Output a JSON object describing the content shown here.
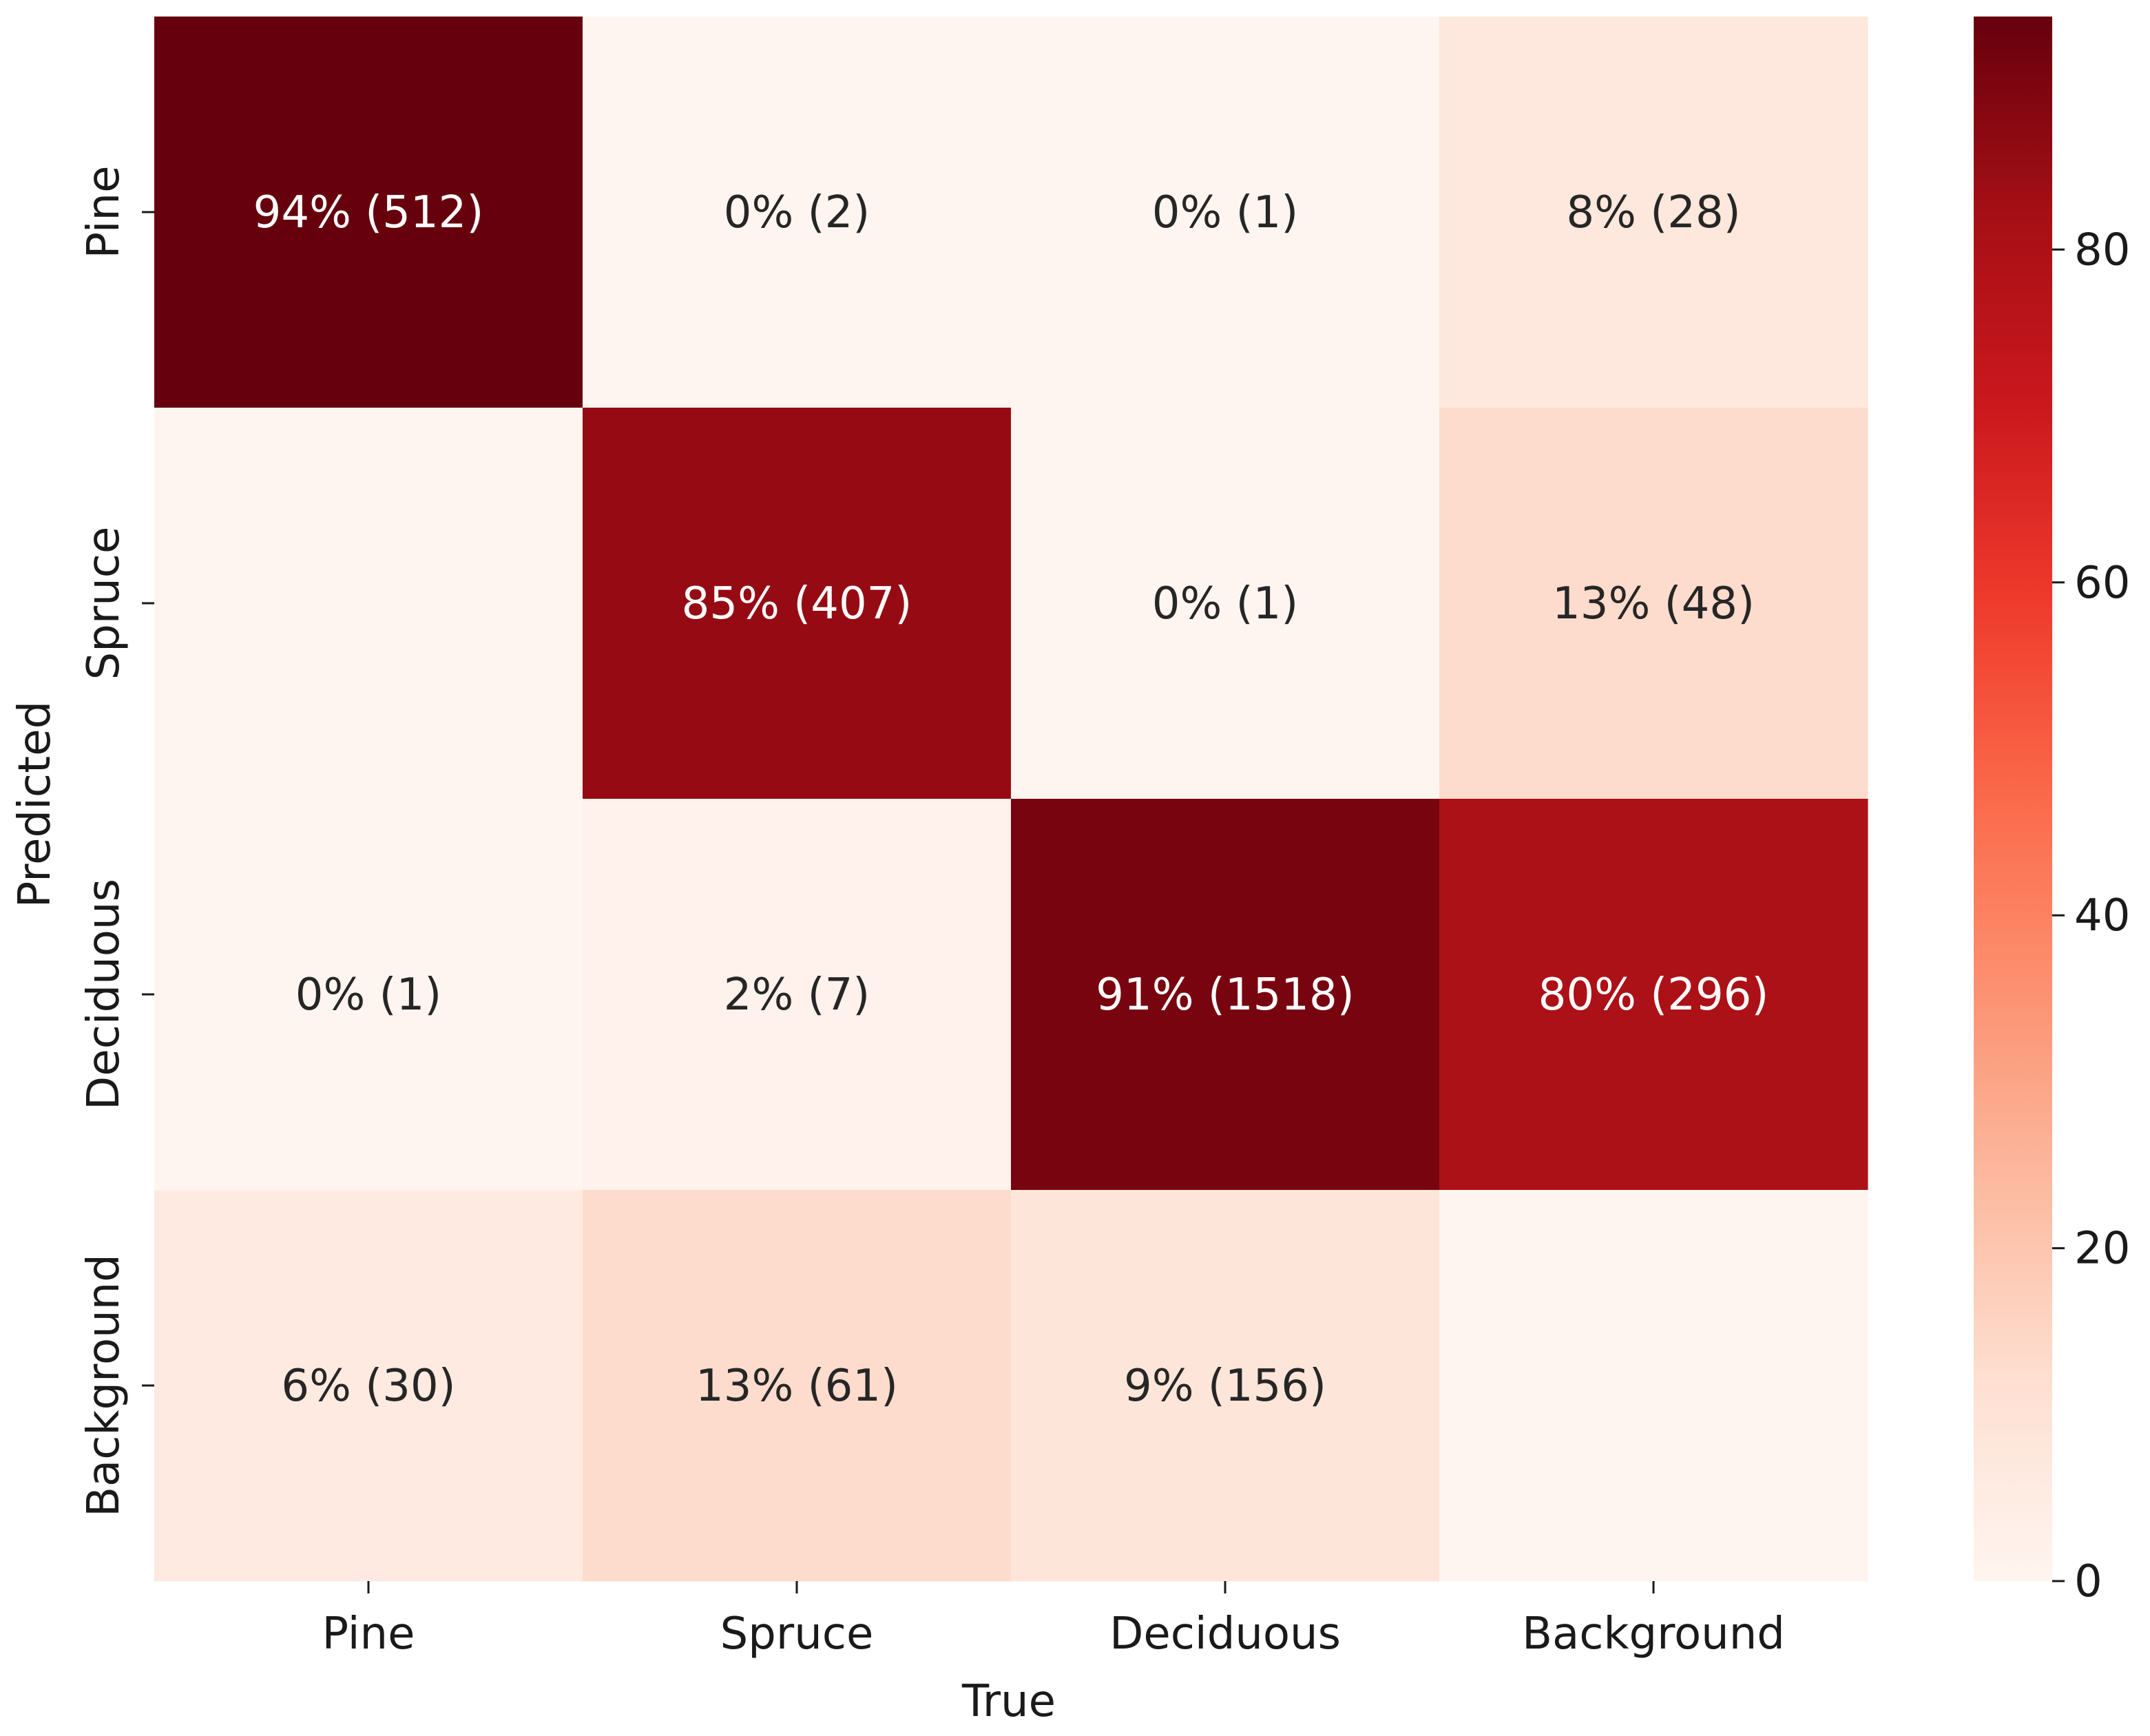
{
  "chart_data": {
    "type": "heatmap",
    "xlabel": "True",
    "ylabel": "Predicted",
    "x_categories": [
      "Pine",
      "Spruce",
      "Deciduous",
      "Background"
    ],
    "y_categories": [
      "Pine",
      "Spruce",
      "Deciduous",
      "Background"
    ],
    "values": [
      [
        94,
        0,
        0,
        8
      ],
      [
        null,
        85,
        0,
        13
      ],
      [
        0,
        2,
        91,
        80
      ],
      [
        6,
        13,
        9,
        null
      ]
    ],
    "counts": [
      [
        512,
        2,
        1,
        28
      ],
      [
        null,
        407,
        1,
        48
      ],
      [
        1,
        7,
        1518,
        296
      ],
      [
        30,
        61,
        156,
        null
      ]
    ],
    "cell_labels": [
      [
        "94% (512)",
        "0% (2)",
        "0% (1)",
        "8% (28)"
      ],
      [
        "",
        "85% (407)",
        "0% (1)",
        "13% (48)"
      ],
      [
        "0% (1)",
        "2% (7)",
        "91% (1518)",
        "80% (296)"
      ],
      [
        "6% (30)",
        "13% (61)",
        "9% (156)",
        ""
      ]
    ],
    "colorbar": {
      "colormap": "Reds",
      "range": [
        0,
        94
      ],
      "ticks": [
        0,
        20,
        40,
        60,
        80
      ],
      "tick_labels": [
        "0",
        "20",
        "40",
        "60",
        "80"
      ]
    },
    "colors": {
      "low": "#fff5f0",
      "high": "#67000d",
      "text_dark": "#262626",
      "text_light": "#ffffff"
    }
  }
}
